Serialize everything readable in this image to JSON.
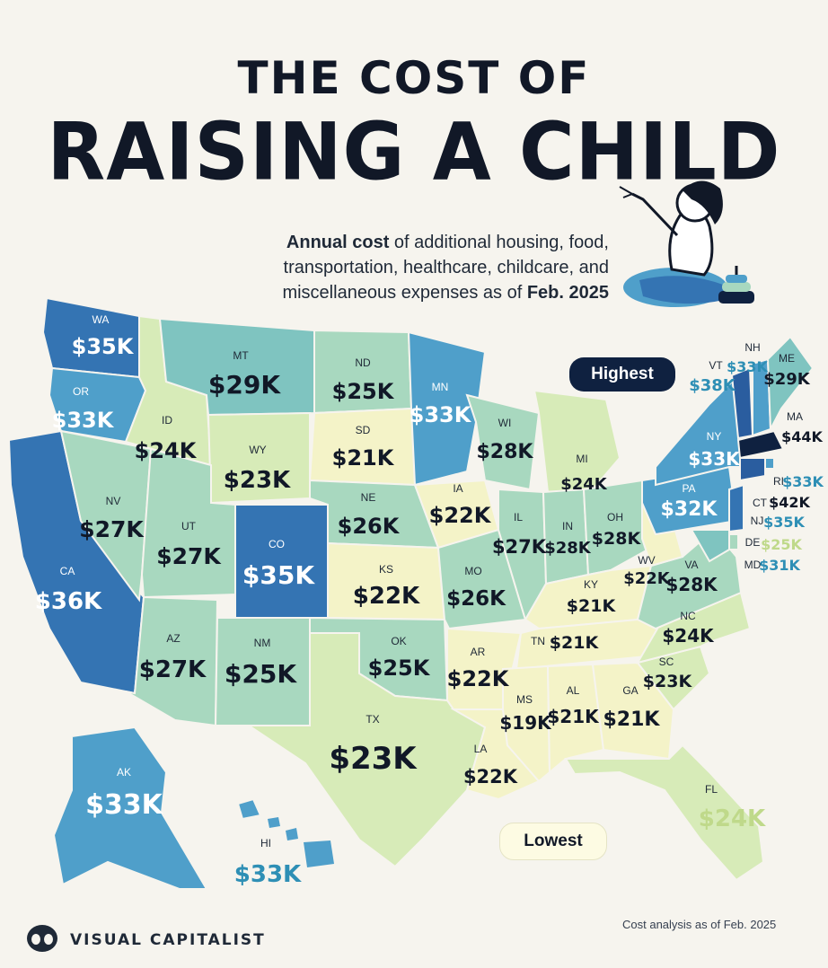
{
  "header": {
    "title_line1": "THE COST OF",
    "title_line2": "RAISING A CHILD",
    "subtitle_bold1": "Annual cost",
    "subtitle_mid": " of additional housing, food, transportation, healthcare, childcare, and miscellaneous expenses as of ",
    "subtitle_bold2": "Feb. 2025"
  },
  "callouts": {
    "highest": "Highest",
    "lowest": "Lowest"
  },
  "footer": {
    "brand": "VISUAL CAPITALIST",
    "note": "Cost analysis as of Feb. 2025"
  },
  "palette": {
    "background": "#f6f4ee",
    "tier_19_22": "#f4f3c8",
    "tier_23_24": "#d7ebb8",
    "tier_25_28": "#a8d8bf",
    "tier_29_31": "#7fc4c0",
    "tier_32_33": "#4f9fca",
    "tier_35_36": "#3474b3",
    "tier_38_42": "#2a5d9f",
    "tier_44": "#0f2140"
  },
  "chart_data": {
    "type": "choropleth",
    "unit": "USD thousands per year",
    "states": [
      {
        "abbr": "WA",
        "label": "$35K",
        "value": 35
      },
      {
        "abbr": "OR",
        "label": "$33K",
        "value": 33
      },
      {
        "abbr": "CA",
        "label": "$36K",
        "value": 36
      },
      {
        "abbr": "ID",
        "label": "$24K",
        "value": 24
      },
      {
        "abbr": "NV",
        "label": "$27K",
        "value": 27
      },
      {
        "abbr": "MT",
        "label": "$29K",
        "value": 29
      },
      {
        "abbr": "WY",
        "label": "$23K",
        "value": 23
      },
      {
        "abbr": "UT",
        "label": "$27K",
        "value": 27
      },
      {
        "abbr": "AZ",
        "label": "$27K",
        "value": 27
      },
      {
        "abbr": "CO",
        "label": "$35K",
        "value": 35
      },
      {
        "abbr": "NM",
        "label": "$25K",
        "value": 25
      },
      {
        "abbr": "ND",
        "label": "$25K",
        "value": 25
      },
      {
        "abbr": "SD",
        "label": "$21K",
        "value": 21
      },
      {
        "abbr": "NE",
        "label": "$26K",
        "value": 26
      },
      {
        "abbr": "KS",
        "label": "$22K",
        "value": 22
      },
      {
        "abbr": "OK",
        "label": "$25K",
        "value": 25
      },
      {
        "abbr": "TX",
        "label": "$23K",
        "value": 23
      },
      {
        "abbr": "MN",
        "label": "$33K",
        "value": 33
      },
      {
        "abbr": "IA",
        "label": "$22K",
        "value": 22
      },
      {
        "abbr": "MO",
        "label": "$26K",
        "value": 26
      },
      {
        "abbr": "AR",
        "label": "$22K",
        "value": 22
      },
      {
        "abbr": "LA",
        "label": "$22K",
        "value": 22
      },
      {
        "abbr": "WI",
        "label": "$28K",
        "value": 28
      },
      {
        "abbr": "IL",
        "label": "$27K",
        "value": 27
      },
      {
        "abbr": "MI",
        "label": "$24K",
        "value": 24
      },
      {
        "abbr": "IN",
        "label": "$28K",
        "value": 28
      },
      {
        "abbr": "OH",
        "label": "$28K",
        "value": 28
      },
      {
        "abbr": "KY",
        "label": "$21K",
        "value": 21
      },
      {
        "abbr": "TN",
        "label": "$21K",
        "value": 21
      },
      {
        "abbr": "MS",
        "label": "$19K",
        "value": 19
      },
      {
        "abbr": "AL",
        "label": "$21K",
        "value": 21
      },
      {
        "abbr": "GA",
        "label": "$21K",
        "value": 21
      },
      {
        "abbr": "FL",
        "label": "$24K",
        "value": 24
      },
      {
        "abbr": "SC",
        "label": "$23K",
        "value": 23
      },
      {
        "abbr": "NC",
        "label": "$24K",
        "value": 24
      },
      {
        "abbr": "VA",
        "label": "$28K",
        "value": 28
      },
      {
        "abbr": "WV",
        "label": "$22K",
        "value": 22
      },
      {
        "abbr": "PA",
        "label": "$32K",
        "value": 32
      },
      {
        "abbr": "NY",
        "label": "$33K",
        "value": 33
      },
      {
        "abbr": "VT",
        "label": "$38K",
        "value": 38
      },
      {
        "abbr": "NH",
        "label": "$33K",
        "value": 33
      },
      {
        "abbr": "ME",
        "label": "$29K",
        "value": 29
      },
      {
        "abbr": "MA",
        "label": "$44K",
        "value": 44
      },
      {
        "abbr": "RI",
        "label": "$33K",
        "value": 33
      },
      {
        "abbr": "CT",
        "label": "$42K",
        "value": 42
      },
      {
        "abbr": "NJ",
        "label": "$35K",
        "value": 35
      },
      {
        "abbr": "DE",
        "label": "$25K",
        "value": 25
      },
      {
        "abbr": "MD",
        "label": "$31K",
        "value": 31
      },
      {
        "abbr": "AK",
        "label": "$33K",
        "value": 33
      },
      {
        "abbr": "HI",
        "label": "$33K",
        "value": 33
      }
    ]
  }
}
